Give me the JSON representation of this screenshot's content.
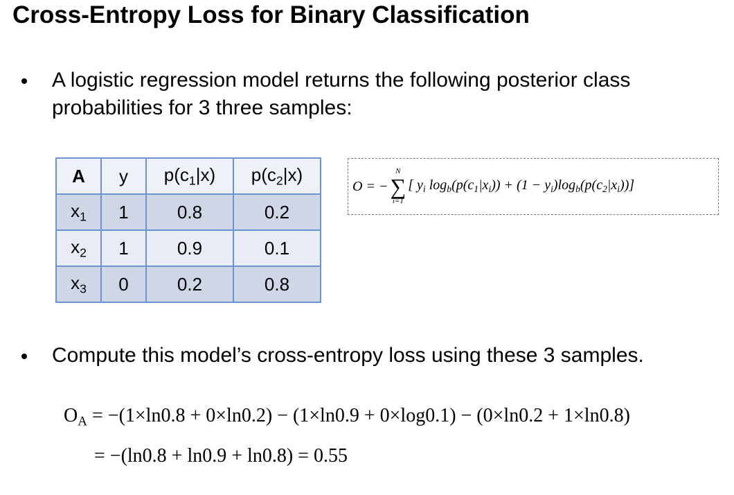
{
  "title": "Cross-Entropy Loss for Binary Classification",
  "bullets": [
    "A logistic regression model returns the following posterior class probabilities for 3 three samples:",
    "Compute this model’s cross-entropy loss using these 3 samples."
  ],
  "table": {
    "header": [
      [
        "A"
      ],
      [
        "y"
      ],
      [
        "p(c",
        "1",
        "|x)"
      ],
      [
        "p(c",
        "2",
        "|x)"
      ]
    ],
    "rows": [
      [
        [
          "x",
          "1"
        ],
        [
          1
        ],
        [
          0.8
        ],
        [
          0.2
        ]
      ],
      [
        [
          "x",
          "2"
        ],
        [
          1
        ],
        [
          0.9
        ],
        [
          0.1
        ]
      ],
      [
        [
          "x",
          "3"
        ],
        [
          0
        ],
        [
          0.2
        ],
        [
          0.8
        ]
      ]
    ]
  },
  "formula": {
    "lhs": "O = −",
    "sum_symbol": "∑",
    "sum_top": "N",
    "sum_bottom": "i=1",
    "body": [
      "[ y",
      "i",
      " log",
      "b",
      "(p(c",
      "1",
      "|x",
      "i",
      ")) + (1 − y",
      "i",
      ")log",
      "b",
      "(p(c",
      "2",
      "|x",
      "i",
      "))]"
    ]
  },
  "computation": [
    [
      "O",
      "A",
      " = −(1×ln0.8 + 0×ln0.2) − (1×ln0.9 + 0×log0.1) − (0×ln0.2 + 1×ln0.8)"
    ],
    [
      "= −(ln0.8 + ln0.9 + ln0.8) = 0.55"
    ]
  ]
}
